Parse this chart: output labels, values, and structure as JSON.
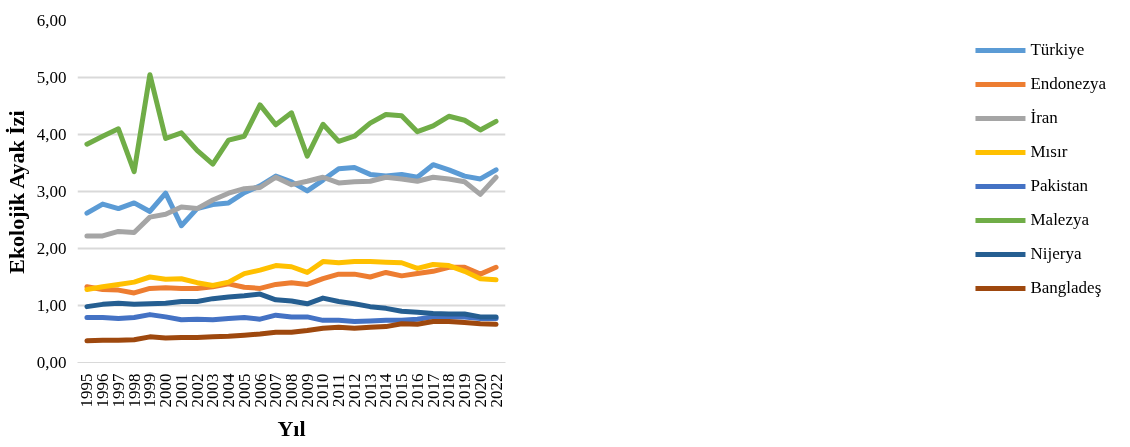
{
  "chart_data": {
    "type": "line",
    "xlabel": "Yıl",
    "ylabel": "Ekolojik Ayak İzi",
    "categories": [
      "1995",
      "1996",
      "1997",
      "1998",
      "1999",
      "2000",
      "2001",
      "2002",
      "2003",
      "2004",
      "2005",
      "2006",
      "2007",
      "2008",
      "2009",
      "2010",
      "2011",
      "2012",
      "2013",
      "2014",
      "2015",
      "2016",
      "2017",
      "2018",
      "2019",
      "2020",
      "2022"
    ],
    "series": [
      {
        "name": "Türkiye",
        "color": "#5b9bd5",
        "values": [
          2.62,
          2.78,
          2.7,
          2.8,
          2.65,
          2.97,
          2.4,
          2.7,
          2.77,
          2.8,
          2.98,
          3.1,
          3.27,
          3.17,
          3.01,
          3.2,
          3.4,
          3.42,
          3.3,
          3.27,
          3.3,
          3.25,
          3.47,
          3.38,
          3.27,
          3.22,
          3.38
        ]
      },
      {
        "name": "Endonezya",
        "color": "#ed7d31",
        "values": [
          1.33,
          1.28,
          1.27,
          1.22,
          1.3,
          1.31,
          1.3,
          1.3,
          1.33,
          1.38,
          1.32,
          1.3,
          1.37,
          1.4,
          1.37,
          1.47,
          1.55,
          1.55,
          1.5,
          1.58,
          1.52,
          1.56,
          1.6,
          1.67,
          1.67,
          1.55,
          1.67
        ]
      },
      {
        "name": "İran",
        "color": "#a5a5a5",
        "values": [
          2.22,
          2.22,
          2.3,
          2.28,
          2.55,
          2.6,
          2.73,
          2.7,
          2.85,
          2.97,
          3.05,
          3.07,
          3.25,
          3.12,
          3.18,
          3.25,
          3.15,
          3.17,
          3.18,
          3.25,
          3.22,
          3.18,
          3.25,
          3.22,
          3.17,
          2.95,
          3.25
        ]
      },
      {
        "name": "Mısır",
        "color": "#ffc000",
        "values": [
          1.28,
          1.33,
          1.37,
          1.41,
          1.5,
          1.46,
          1.47,
          1.4,
          1.35,
          1.41,
          1.56,
          1.62,
          1.7,
          1.68,
          1.58,
          1.77,
          1.75,
          1.77,
          1.77,
          1.76,
          1.75,
          1.65,
          1.72,
          1.7,
          1.6,
          1.47,
          1.45
        ]
      },
      {
        "name": "Pakistan",
        "color": "#4472c4",
        "values": [
          0.79,
          0.79,
          0.77,
          0.79,
          0.84,
          0.8,
          0.75,
          0.76,
          0.75,
          0.77,
          0.79,
          0.76,
          0.83,
          0.8,
          0.8,
          0.74,
          0.74,
          0.72,
          0.73,
          0.74,
          0.74,
          0.76,
          0.8,
          0.8,
          0.8,
          0.77,
          0.77
        ]
      },
      {
        "name": "Malezya",
        "color": "#70ad47",
        "values": [
          3.83,
          3.97,
          4.1,
          3.35,
          5.05,
          3.93,
          4.03,
          3.72,
          3.48,
          3.9,
          3.97,
          4.52,
          4.17,
          4.38,
          3.62,
          4.18,
          3.88,
          3.97,
          4.2,
          4.35,
          4.33,
          4.05,
          4.15,
          4.32,
          4.25,
          4.08,
          4.23
        ]
      },
      {
        "name": "Nijerya",
        "color": "#255e91",
        "values": [
          0.98,
          1.02,
          1.04,
          1.02,
          1.03,
          1.04,
          1.07,
          1.07,
          1.12,
          1.15,
          1.17,
          1.2,
          1.1,
          1.08,
          1.03,
          1.13,
          1.07,
          1.03,
          0.98,
          0.95,
          0.9,
          0.88,
          0.86,
          0.85,
          0.85,
          0.8,
          0.8
        ]
      },
      {
        "name": "Bangladeş",
        "color": "#9e480e",
        "values": [
          0.38,
          0.39,
          0.39,
          0.4,
          0.45,
          0.43,
          0.44,
          0.44,
          0.45,
          0.46,
          0.48,
          0.5,
          0.53,
          0.53,
          0.56,
          0.6,
          0.62,
          0.6,
          0.62,
          0.63,
          0.68,
          0.67,
          0.72,
          0.72,
          0.7,
          0.68,
          0.67
        ]
      }
    ],
    "ylim": [
      0,
      6
    ],
    "yticks": [
      {
        "value": 0,
        "label": "0,00"
      },
      {
        "value": 1,
        "label": "1,00"
      },
      {
        "value": 2,
        "label": "2,00"
      },
      {
        "value": 3,
        "label": "3,00"
      },
      {
        "value": 4,
        "label": "4,00"
      },
      {
        "value": 5,
        "label": "5,00"
      },
      {
        "value": 6,
        "label": "6,00"
      }
    ],
    "grid": "y",
    "legend": "right",
    "marker": "none",
    "line_style": "solid"
  }
}
